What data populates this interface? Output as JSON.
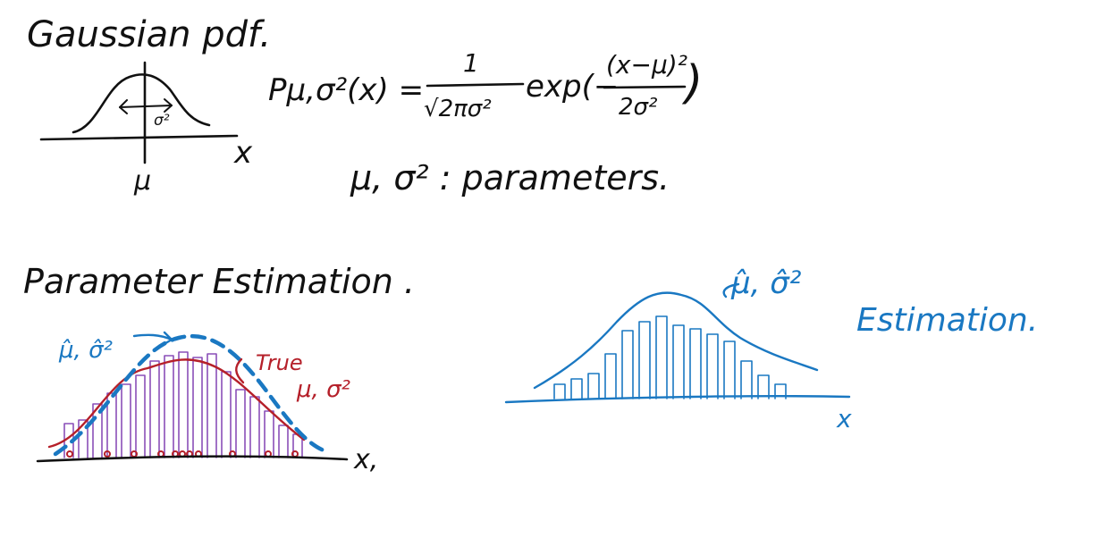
{
  "colors": {
    "ink": "#111111",
    "blue": "#1a78c2",
    "red": "#b5202a",
    "purple": "#8a4fb8"
  },
  "section1": {
    "title": "Gaussian pdf.",
    "sketch_mu_label": "μ",
    "sketch_x_label": "x",
    "sketch_sigma_label": "σ²",
    "formula_lhs": "Pμ,σ²(x) =",
    "formula_numerator": "1",
    "formula_denominator": "√2πσ²",
    "formula_exp": "exp(−",
    "formula_exp_numerator": "(x−μ)²",
    "formula_exp_denominator": "2σ²",
    "formula_close": ")",
    "params_note": "μ, σ² : parameters."
  },
  "section2": {
    "title": "Parameter Estimation .",
    "hat_label": "μ̂, σ̂²",
    "true_label_line1": "True",
    "true_label_line2": "μ, σ²",
    "x_label": "x,"
  },
  "section3": {
    "hat_label": "μ̂, σ̂²",
    "estimation_label": "Estimation.",
    "x_label": "x"
  }
}
